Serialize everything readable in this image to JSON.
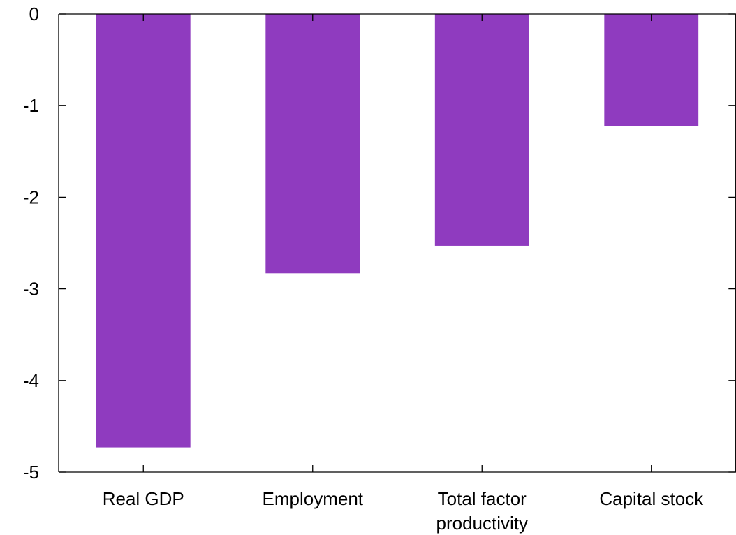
{
  "chart_data": {
    "type": "bar",
    "categories": [
      [
        "Real GDP"
      ],
      [
        "Employment"
      ],
      [
        "Total factor",
        "productivity"
      ],
      [
        "Capital stock"
      ]
    ],
    "values": [
      -4.73,
      -2.83,
      -2.53,
      -1.22
    ],
    "ylim": [
      -5,
      0
    ],
    "yticks": [
      0,
      -1,
      -2,
      -3,
      -4,
      -5
    ],
    "ytick_labels": [
      "0",
      "-1",
      "-2",
      "-3",
      "-4",
      "-5"
    ],
    "bar_color": "#8f3bbf",
    "grid": false,
    "legend": "none",
    "title": "",
    "xlabel": "",
    "ylabel": ""
  }
}
